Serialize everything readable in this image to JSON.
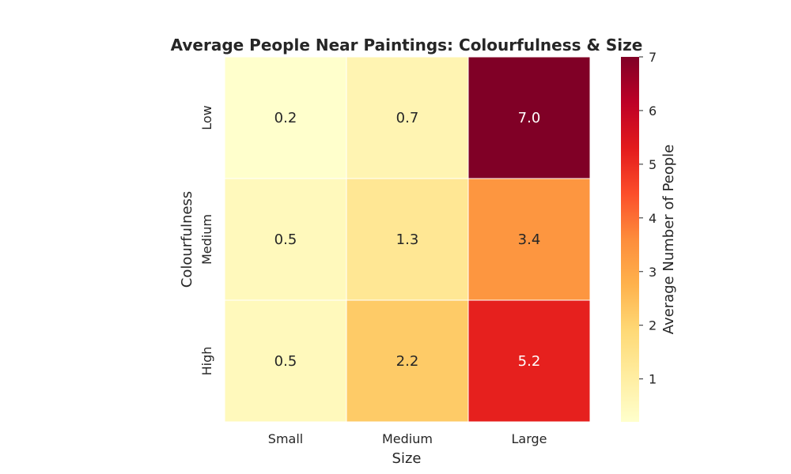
{
  "chart_data": {
    "type": "heatmap",
    "title": "Average People Near Paintings: Colourfulness & Size",
    "xlabel": "Size",
    "ylabel": "Colourfulness",
    "x_categories": [
      "Small",
      "Medium",
      "Large"
    ],
    "y_categories": [
      "Low",
      "Medium",
      "High"
    ],
    "values": [
      [
        0.2,
        0.7,
        7.0
      ],
      [
        0.5,
        1.3,
        3.4
      ],
      [
        0.5,
        2.2,
        5.2
      ]
    ],
    "cell_labels": [
      [
        "0.2",
        "0.7",
        "7.0"
      ],
      [
        "0.5",
        "1.3",
        "3.4"
      ],
      [
        "0.5",
        "2.2",
        "5.2"
      ]
    ],
    "colormap": "YlOrRd",
    "colorbar": {
      "label": "Average Number of People",
      "range": [
        0.2,
        7.0
      ],
      "ticks": [
        "1",
        "2",
        "3",
        "4",
        "5",
        "6",
        "7"
      ]
    }
  }
}
